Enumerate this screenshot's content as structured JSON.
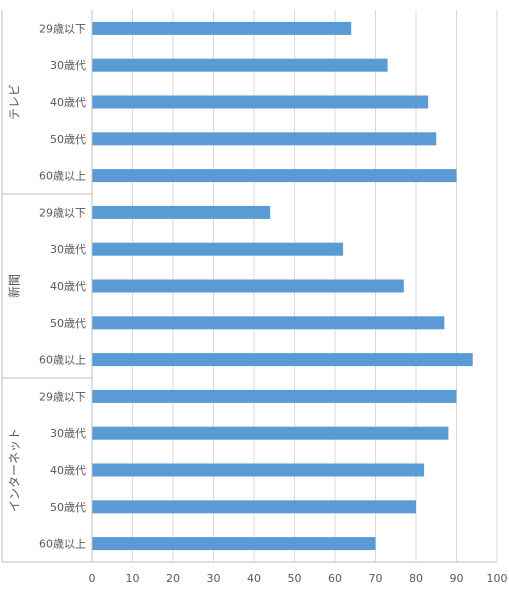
{
  "chart_data": {
    "type": "bar",
    "orientation": "horizontal",
    "title": "",
    "xlabel": "",
    "ylabel": "",
    "xlim": [
      0,
      100
    ],
    "x_ticks": [
      "0",
      "10",
      "20",
      "30",
      "40",
      "50",
      "60",
      "70",
      "80",
      "90",
      "100"
    ],
    "grid": "vertical",
    "legend": "none",
    "bar_color": "#5b9bd5",
    "grid_color": "#d9d9d9",
    "axis_color": "#bfbfbf",
    "groups": [
      {
        "name": "テレビ",
        "categories": [
          "29歳以下",
          "30歳代",
          "40歳代",
          "50歳代",
          "60歳以上"
        ],
        "values": [
          64,
          73,
          83,
          85,
          90
        ]
      },
      {
        "name": "新聞",
        "categories": [
          "29歳以下",
          "30歳代",
          "40歳代",
          "50歳代",
          "60歳以上"
        ],
        "values": [
          44,
          62,
          77,
          87,
          94
        ]
      },
      {
        "name": "インターネット",
        "categories": [
          "29歳以下",
          "30歳代",
          "40歳代",
          "50歳代",
          "60歳以上"
        ],
        "values": [
          90,
          88,
          82,
          80,
          70
        ]
      }
    ]
  }
}
